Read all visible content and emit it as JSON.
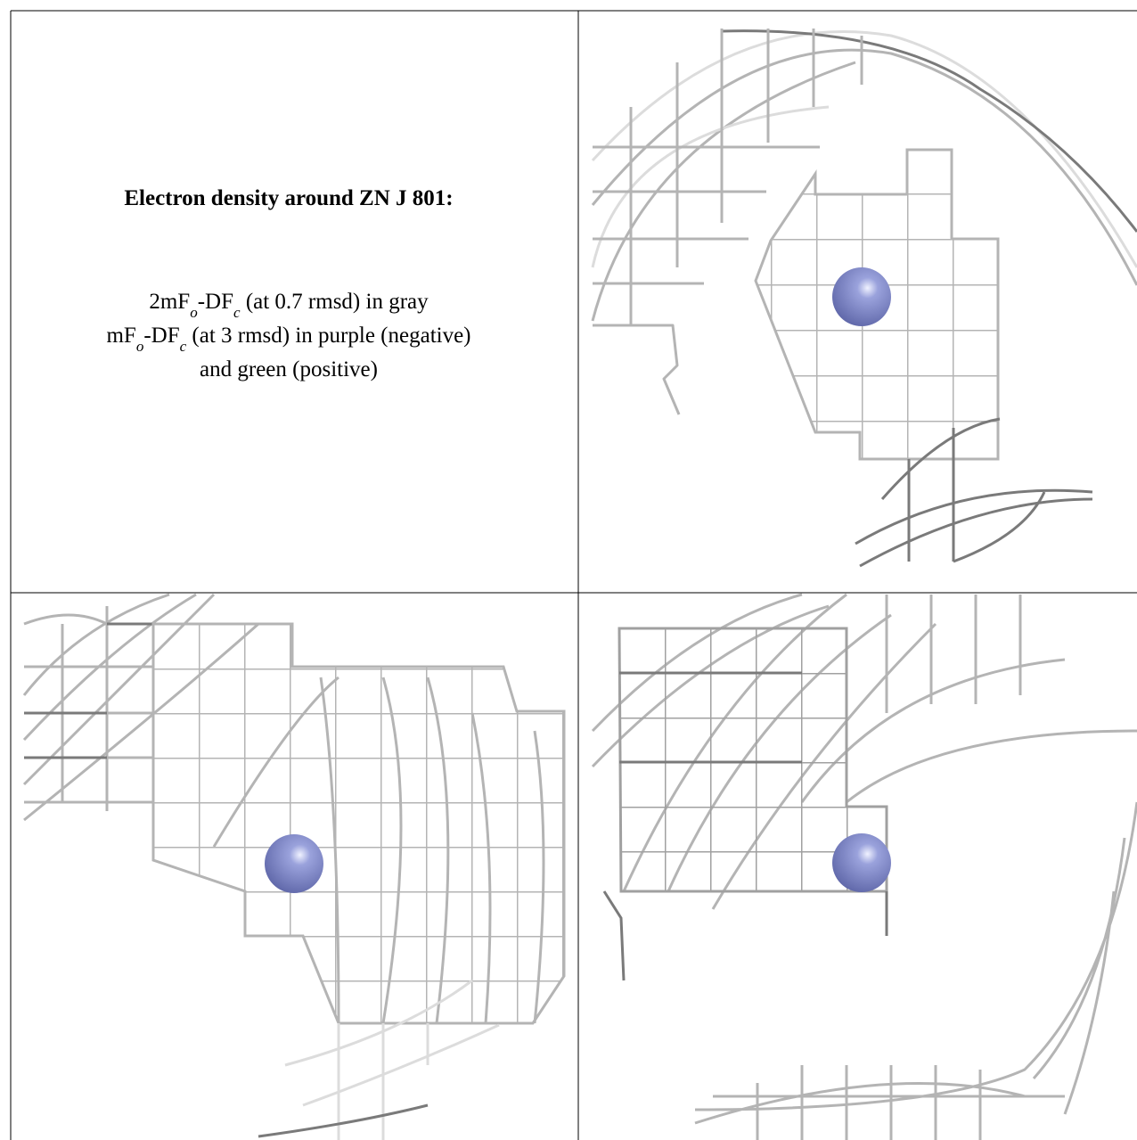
{
  "caption": {
    "title": "Electron density around ZN J 801:",
    "lines": [
      {
        "runs": [
          {
            "text": "2mF"
          },
          {
            "text": "o",
            "sub": true
          },
          {
            "text": "-DF"
          },
          {
            "text": "c",
            "sub": true
          },
          {
            "text": " (at 0.7 rmsd) in gray"
          }
        ]
      },
      {
        "runs": [
          {
            "text": "mF"
          },
          {
            "text": "o",
            "sub": true
          },
          {
            "text": "-DF"
          },
          {
            "text": "c",
            "sub": true
          },
          {
            "text": " (at 3 rmsd) in purple (negative)"
          }
        ]
      },
      {
        "runs": [
          {
            "text": "and green (positive)"
          }
        ]
      }
    ]
  }
}
